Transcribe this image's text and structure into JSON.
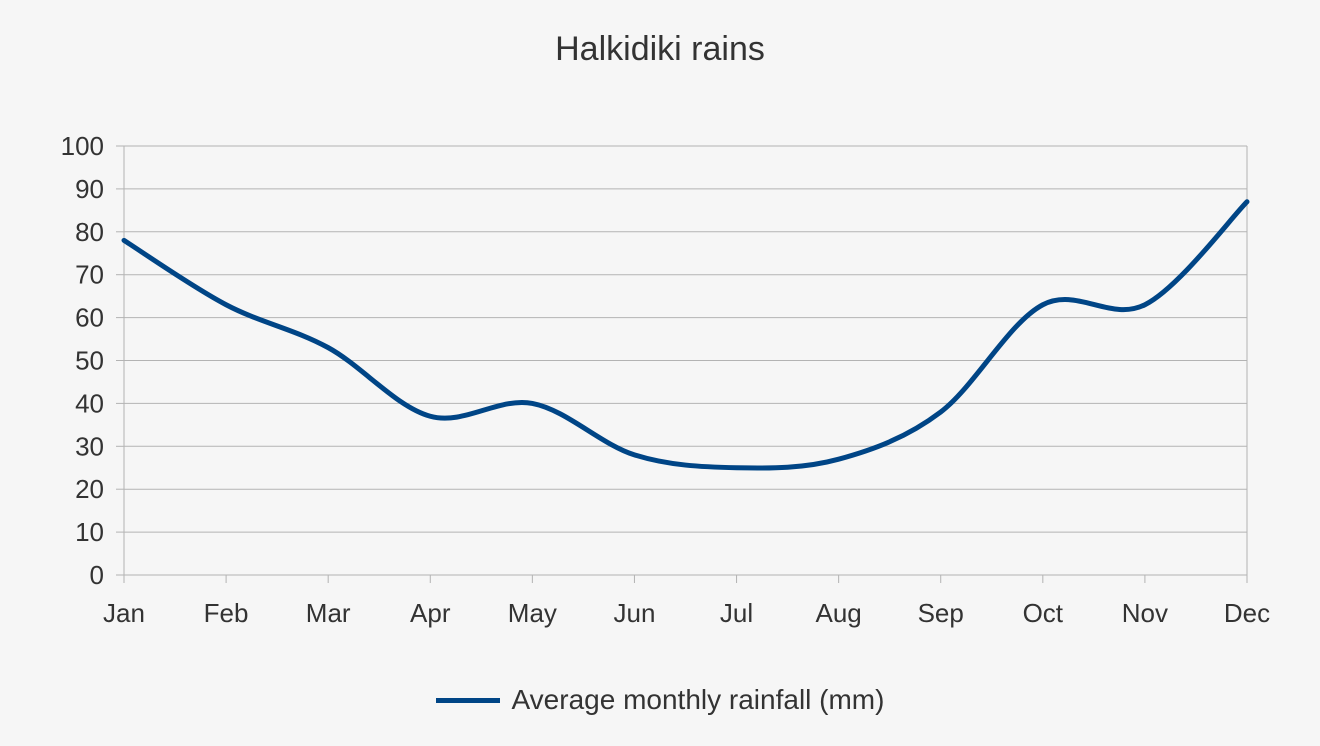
{
  "chart_data": {
    "type": "line",
    "title": "Halkidiki rains",
    "xlabel": "",
    "ylabel": "",
    "categories": [
      "Jan",
      "Feb",
      "Mar",
      "Apr",
      "May",
      "Jun",
      "Jul",
      "Aug",
      "Sep",
      "Oct",
      "Nov",
      "Dec"
    ],
    "series": [
      {
        "name": "Average monthly rainfall (mm)",
        "values": [
          78,
          63,
          53,
          37,
          40,
          28,
          25,
          27,
          38,
          63,
          63,
          87
        ],
        "color": "#004586"
      }
    ],
    "ylim": [
      0,
      100
    ],
    "yticks": [
      0,
      10,
      20,
      30,
      40,
      50,
      60,
      70,
      80,
      90,
      100
    ],
    "grid": true,
    "smooth": true,
    "legend": "bottom"
  }
}
